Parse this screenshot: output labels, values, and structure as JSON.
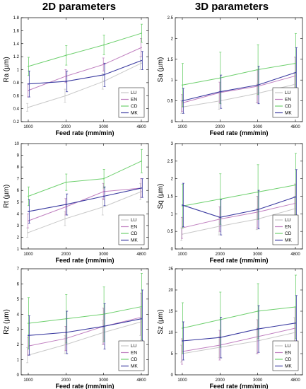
{
  "columns": [
    "2D parameters",
    "3D parameters"
  ],
  "xlabel": "Feed rate (mm/min)",
  "legend": [
    {
      "name": "LU",
      "color": "#c8c8c8"
    },
    {
      "name": "EN",
      "color": "#c080c0"
    },
    {
      "name": "CD",
      "color": "#6ed06e"
    },
    {
      "name": "MK",
      "color": "#3a3aa0"
    }
  ],
  "chart_data": [
    {
      "type": "line",
      "ylabel": "Ra (µm)",
      "categories": [
        "1000",
        "2000",
        "3000",
        "4800"
      ],
      "ylim": [
        0.2,
        1.8
      ],
      "yticks": [
        0.2,
        0.4,
        0.6,
        0.8,
        1.0,
        1.2,
        1.4,
        1.6,
        1.8
      ],
      "yticklabels": [
        "0.2",
        "0.4",
        "0.6",
        "0.8",
        "1",
        "1.2",
        "1.4",
        "1.6",
        "1.8"
      ],
      "series": [
        {
          "name": "LU",
          "values": [
            0.42,
            0.6,
            0.82,
            1.1
          ],
          "err": [
            0.06,
            0.1,
            0.12,
            0.1
          ]
        },
        {
          "name": "EN",
          "values": [
            0.68,
            0.9,
            1.08,
            1.34
          ],
          "err": [
            0.1,
            0.1,
            0.1,
            0.14
          ]
        },
        {
          "name": "CD",
          "values": [
            1.05,
            1.22,
            1.38,
            1.56
          ],
          "err": [
            0.14,
            0.15,
            0.15,
            0.14
          ]
        },
        {
          "name": "MK",
          "values": [
            0.78,
            0.82,
            0.92,
            1.14
          ],
          "err": [
            0.2,
            0.16,
            0.18,
            0.14
          ]
        }
      ]
    },
    {
      "type": "line",
      "ylabel": "Sa (µm)",
      "categories": [
        "1000",
        "2000",
        "3000",
        "4800"
      ],
      "ylim": [
        0,
        2.5
      ],
      "yticks": [
        0,
        0.5,
        1,
        1.5,
        2,
        2.5
      ],
      "yticklabels": [
        "0",
        "0.5",
        "1",
        "1.5",
        "2",
        "2.5"
      ],
      "series": [
        {
          "name": "LU",
          "values": [
            0.35,
            0.5,
            0.68,
            0.9
          ],
          "err": [
            0.15,
            0.2,
            0.22,
            0.28
          ]
        },
        {
          "name": "EN",
          "values": [
            0.45,
            0.7,
            0.85,
            1.1
          ],
          "err": [
            0.2,
            0.25,
            0.4,
            0.45
          ]
        },
        {
          "name": "CD",
          "values": [
            0.88,
            1.05,
            1.25,
            1.4
          ],
          "err": [
            0.52,
            0.62,
            0.6,
            0.72
          ]
        },
        {
          "name": "MK",
          "values": [
            0.5,
            0.72,
            0.88,
            1.18
          ],
          "err": [
            0.3,
            0.4,
            0.45,
            0.6
          ]
        }
      ]
    },
    {
      "type": "line",
      "ylabel": "Rt (µm)",
      "categories": [
        "1000",
        "2000",
        "3000",
        "4800"
      ],
      "ylim": [
        1,
        10
      ],
      "yticks": [
        1,
        2,
        3,
        4,
        5,
        6,
        7,
        8,
        9,
        10
      ],
      "yticklabels": [
        "1",
        "2",
        "3",
        "4",
        "5",
        "6",
        "7",
        "8",
        "9",
        "10"
      ],
      "series": [
        {
          "name": "LU",
          "values": [
            2.4,
            3.6,
            4.6,
            5.9
          ],
          "err": [
            0.4,
            0.6,
            0.7,
            0.7
          ]
        },
        {
          "name": "EN",
          "values": [
            3.4,
            4.6,
            5.9,
            6.2
          ],
          "err": [
            0.6,
            0.7,
            0.7,
            0.8
          ]
        },
        {
          "name": "CD",
          "values": [
            5.5,
            6.7,
            7.0,
            8.5
          ],
          "err": [
            0.8,
            0.7,
            0.8,
            1.0
          ]
        },
        {
          "name": "MK",
          "values": [
            4.2,
            4.8,
            5.5,
            6.2
          ],
          "err": [
            1.0,
            0.9,
            0.8,
            0.8
          ]
        }
      ]
    },
    {
      "type": "line",
      "ylabel": "Sq (µm)",
      "categories": [
        "1000",
        "2000",
        "3000",
        "4800"
      ],
      "ylim": [
        0,
        3
      ],
      "yticks": [
        0,
        0.5,
        1,
        1.5,
        2,
        2.5,
        3
      ],
      "yticklabels": [
        "0",
        "0.5",
        "1",
        "1.5",
        "2",
        "2.5",
        "3"
      ],
      "series": [
        {
          "name": "LU",
          "values": [
            0.42,
            0.65,
            0.85,
            1.15
          ],
          "err": [
            0.18,
            0.25,
            0.3,
            0.35
          ]
        },
        {
          "name": "EN",
          "values": [
            0.6,
            0.85,
            1.05,
            1.3
          ],
          "err": [
            0.3,
            0.35,
            0.45,
            0.55
          ]
        },
        {
          "name": "CD",
          "values": [
            1.22,
            1.42,
            1.62,
            1.82
          ],
          "err": [
            0.62,
            0.72,
            0.78,
            0.9
          ]
        },
        {
          "name": "MK",
          "values": [
            1.25,
            0.9,
            1.12,
            1.48
          ],
          "err": [
            0.62,
            0.5,
            0.55,
            0.78
          ]
        }
      ]
    },
    {
      "type": "line",
      "ylabel": "Rz (µm)",
      "categories": [
        "1000",
        "2000",
        "3000",
        "4800"
      ],
      "ylim": [
        0,
        7
      ],
      "yticks": [
        0,
        1,
        2,
        3,
        4,
        5,
        6,
        7
      ],
      "yticklabels": [
        "0",
        "1",
        "2",
        "3",
        "4",
        "5",
        "6",
        "7"
      ],
      "series": [
        {
          "name": "LU",
          "values": [
            1.3,
            2.0,
            2.8,
            3.5
          ],
          "err": [
            0.5,
            0.6,
            0.8,
            0.9
          ]
        },
        {
          "name": "EN",
          "values": [
            1.9,
            2.4,
            3.2,
            3.8
          ],
          "err": [
            0.6,
            0.8,
            1.2,
            1.6
          ]
        },
        {
          "name": "CD",
          "values": [
            3.4,
            3.7,
            4.0,
            4.5
          ],
          "err": [
            1.7,
            1.6,
            1.8,
            2.2
          ]
        },
        {
          "name": "MK",
          "values": [
            2.6,
            2.8,
            3.2,
            3.7
          ],
          "err": [
            1.3,
            1.4,
            1.5,
            1.9
          ]
        }
      ]
    },
    {
      "type": "line",
      "ylabel": "Sz (µm)",
      "categories": [
        "1000",
        "2000",
        "3000",
        "4800"
      ],
      "ylim": [
        0,
        25
      ],
      "yticks": [
        0,
        5,
        10,
        15,
        20,
        25
      ],
      "yticklabels": [
        "0",
        "5",
        "10",
        "15",
        "20",
        "25"
      ],
      "series": [
        {
          "name": "LU",
          "values": [
            5.0,
            6.5,
            8.0,
            10.0
          ],
          "err": [
            2.0,
            2.5,
            3.0,
            3.5
          ]
        },
        {
          "name": "EN",
          "values": [
            5.5,
            7.0,
            9.0,
            11.0
          ],
          "err": [
            3.0,
            3.5,
            4.0,
            5.0
          ]
        },
        {
          "name": "CD",
          "values": [
            11.0,
            13.0,
            15.0,
            16.0
          ],
          "err": [
            6.0,
            6.5,
            6.5,
            7.5
          ]
        },
        {
          "name": "MK",
          "values": [
            8.0,
            8.8,
            10.8,
            12.2
          ],
          "err": [
            4.5,
            4.8,
            5.5,
            6.5
          ]
        }
      ]
    }
  ]
}
